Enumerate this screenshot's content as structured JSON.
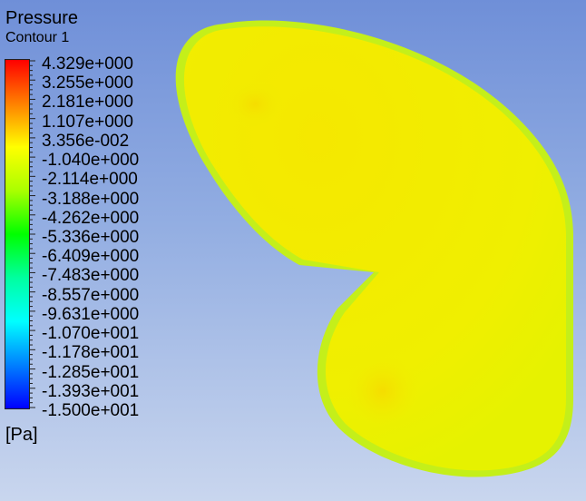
{
  "legend": {
    "title": "Pressure",
    "subtitle": "Contour 1",
    "units": "[Pa]",
    "labels": [
      "4.329e+000",
      "3.255e+000",
      "2.181e+000",
      "1.107e+000",
      "3.356e-002",
      "-1.040e+000",
      "-2.114e+000",
      "-3.188e+000",
      "-4.262e+000",
      "-5.336e+000",
      "-6.409e+000",
      "-7.483e+000",
      "-8.557e+000",
      "-9.631e+000",
      "-1.070e+001",
      "-1.178e+001",
      "-1.285e+001",
      "-1.393e+001",
      "-1.500e+001"
    ],
    "colormap": [
      "#ff0000",
      "#ff8000",
      "#ffff00",
      "#aaff00",
      "#00ff00",
      "#00ff9f",
      "#00ffff",
      "#0080ff",
      "#0000ff"
    ]
  },
  "contour": {
    "fill_color": "#f2f000",
    "edge_color": "#c8f000",
    "background_top": "#6f8fd8",
    "background_bottom": "#c9d6ee"
  }
}
